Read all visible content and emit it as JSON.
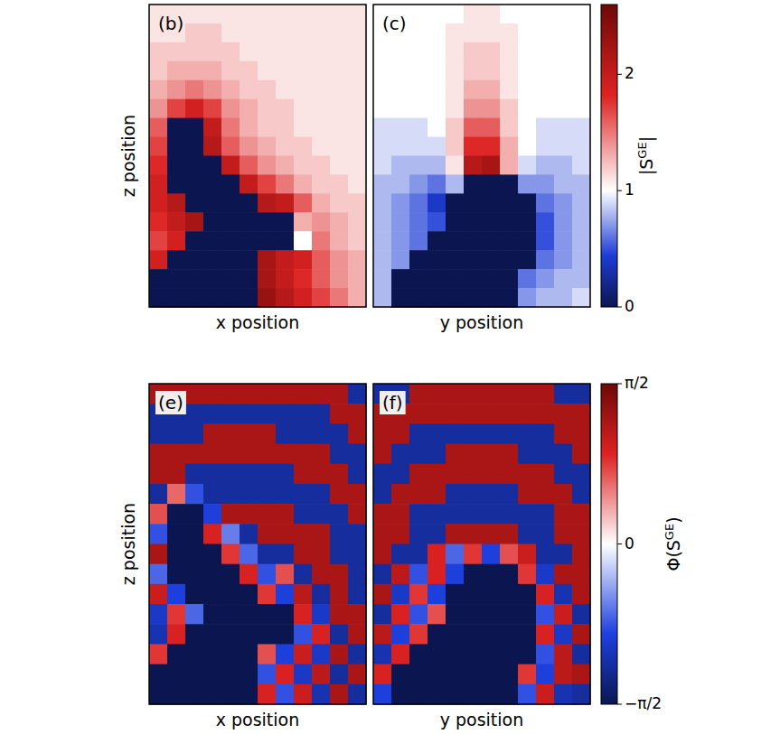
{
  "chart_data": [
    {
      "type": "heatmap",
      "title": "(b)",
      "x_label": "x position",
      "y_label": "z position",
      "tick_labels": false,
      "values": [
        [
          1.1,
          1.1,
          1.1,
          1.1,
          1.1,
          1.1,
          1.1,
          1.1,
          1.1,
          1.1,
          1.1,
          1.1
        ],
        [
          1.1,
          1.1,
          1.2,
          1.2,
          1.1,
          1.1,
          1.1,
          1.1,
          1.1,
          1.1,
          1.1,
          1.1
        ],
        [
          1.2,
          1.2,
          1.2,
          1.2,
          1.2,
          1.1,
          1.1,
          1.1,
          1.1,
          1.1,
          1.1,
          1.1
        ],
        [
          1.2,
          1.3,
          1.3,
          1.3,
          1.2,
          1.2,
          1.1,
          1.1,
          1.1,
          1.1,
          1.1,
          1.1
        ],
        [
          1.3,
          1.4,
          1.5,
          1.4,
          1.3,
          1.2,
          1.2,
          1.1,
          1.1,
          1.1,
          1.1,
          1.1
        ],
        [
          1.4,
          1.7,
          1.9,
          1.7,
          1.4,
          1.3,
          1.2,
          1.2,
          1.1,
          1.1,
          1.1,
          1.1
        ],
        [
          1.6,
          0,
          0,
          2.0,
          1.5,
          1.3,
          1.2,
          1.2,
          1.1,
          1.1,
          1.1,
          1.1
        ],
        [
          1.7,
          0,
          0,
          2.1,
          1.6,
          1.4,
          1.3,
          1.2,
          1.2,
          1.1,
          1.1,
          1.1
        ],
        [
          1.8,
          0,
          0,
          0,
          2.0,
          1.6,
          1.4,
          1.3,
          1.2,
          1.2,
          1.1,
          1.1
        ],
        [
          1.9,
          0,
          0,
          0,
          0,
          2.0,
          1.7,
          1.5,
          1.3,
          1.2,
          1.2,
          1.1
        ],
        [
          1.9,
          2.1,
          0,
          0,
          0,
          0,
          2.1,
          2.0,
          1.6,
          1.3,
          1.2,
          1.2
        ],
        [
          1.8,
          2.0,
          2.2,
          0,
          0,
          0,
          0,
          0,
          1.3,
          1.4,
          1.3,
          1.2
        ],
        [
          1.7,
          1.9,
          0,
          0,
          0,
          0,
          0,
          0,
          1.0,
          1.5,
          1.3,
          1.2
        ],
        [
          1.9,
          0,
          0,
          0,
          0,
          0,
          2.2,
          2.0,
          1.9,
          1.6,
          1.4,
          1.3
        ],
        [
          0,
          0,
          0,
          0,
          0,
          0,
          2.2,
          2.0,
          1.8,
          1.6,
          1.4,
          1.3
        ],
        [
          0,
          0,
          0,
          0,
          0,
          0,
          2.3,
          2.1,
          1.9,
          1.7,
          1.5,
          1.3
        ]
      ]
    },
    {
      "type": "heatmap",
      "title": "(c)",
      "x_label": "y position",
      "tick_labels": false,
      "values": [
        [
          1.0,
          1.0,
          1.0,
          1.0,
          1.0,
          1.1,
          1.1,
          1.0,
          1.0,
          1.0,
          1.0,
          1.0
        ],
        [
          1.0,
          1.0,
          1.0,
          1.0,
          1.1,
          1.1,
          1.1,
          1.1,
          1.0,
          1.0,
          1.0,
          1.0
        ],
        [
          1.0,
          1.0,
          1.0,
          1.0,
          1.1,
          1.2,
          1.2,
          1.1,
          1.0,
          1.0,
          1.0,
          1.0
        ],
        [
          1.0,
          1.0,
          1.0,
          1.0,
          1.1,
          1.2,
          1.2,
          1.1,
          1.0,
          1.0,
          1.0,
          1.0
        ],
        [
          1.0,
          1.0,
          1.0,
          1.0,
          1.1,
          1.3,
          1.3,
          1.1,
          1.0,
          1.0,
          1.0,
          1.0
        ],
        [
          1.0,
          1.0,
          1.0,
          1.0,
          1.1,
          1.4,
          1.4,
          1.2,
          1.0,
          1.0,
          1.0,
          1.0
        ],
        [
          0.9,
          0.9,
          0.9,
          1.0,
          1.2,
          1.6,
          1.6,
          1.2,
          1.0,
          0.9,
          0.9,
          0.9
        ],
        [
          0.9,
          0.9,
          0.9,
          0.9,
          1.2,
          1.8,
          1.8,
          1.3,
          1.0,
          0.9,
          0.9,
          0.9
        ],
        [
          0.9,
          0.8,
          0.8,
          0.8,
          1.1,
          2.1,
          2.2,
          1.3,
          0.9,
          0.8,
          0.8,
          0.9
        ],
        [
          0.8,
          0.8,
          0.7,
          0.6,
          0.8,
          0,
          0,
          0,
          0.7,
          0.7,
          0.8,
          0.8
        ],
        [
          0.8,
          0.7,
          0.6,
          0.4,
          0,
          0,
          0,
          0,
          0,
          0.6,
          0.7,
          0.8
        ],
        [
          0.8,
          0.7,
          0.6,
          0.5,
          0,
          0,
          0,
          0,
          0,
          0.5,
          0.7,
          0.8
        ],
        [
          0.8,
          0.7,
          0.6,
          0,
          0,
          0,
          0,
          0,
          0,
          0.5,
          0.7,
          0.8
        ],
        [
          0.8,
          0.7,
          0,
          0,
          0,
          0,
          0,
          0,
          0,
          0.6,
          0.7,
          0.8
        ],
        [
          0.8,
          0,
          0,
          0,
          0,
          0,
          0,
          0,
          0.6,
          0.7,
          0.8,
          0.8
        ],
        [
          0.8,
          0,
          0,
          0,
          0,
          0,
          0,
          0,
          0.7,
          0.8,
          0.8,
          0.9
        ]
      ],
      "colorbar": {
        "label": [
          "|S",
          "GE",
          "|"
        ],
        "range": [
          0,
          2.6
        ],
        "ticks": [
          0,
          1,
          2
        ]
      }
    },
    {
      "type": "heatmap",
      "title": "(e)",
      "x_label": "x position",
      "y_label": "z position",
      "tick_labels": false,
      "values": [
        [
          1.2,
          1.2,
          1.2,
          1.2,
          1.2,
          1.2,
          1.2,
          1.2,
          1.2,
          1.2,
          1.2,
          -1.2
        ],
        [
          -1.2,
          -1.2,
          -1.2,
          -1.2,
          -1.2,
          -1.2,
          -1.2,
          -1.2,
          -1.2,
          -1.2,
          1.2,
          1.2
        ],
        [
          -1.2,
          -1.2,
          -1.2,
          1.2,
          1.2,
          1.2,
          1.2,
          -1.2,
          -1.2,
          -1.2,
          -1.2,
          1.2
        ],
        [
          1.2,
          1.2,
          1.2,
          1.2,
          1.2,
          1.2,
          1.2,
          1.2,
          1.2,
          1.2,
          -1.2,
          -1.2
        ],
        [
          1.2,
          1.2,
          -1.2,
          -1.2,
          -1.2,
          -1.2,
          -1.2,
          -1.2,
          1.2,
          1.2,
          1.2,
          -1.2
        ],
        [
          -1.2,
          0.6,
          -0.8,
          -1.2,
          -1.2,
          -1.2,
          -1.2,
          -1.2,
          -1.2,
          -1.2,
          1.2,
          1.2
        ],
        [
          0.7,
          -1.57,
          -1.57,
          -0.9,
          1.2,
          1.2,
          1.2,
          1.2,
          -1.2,
          -1.2,
          -1.2,
          1.2
        ],
        [
          -0.8,
          -1.57,
          -1.57,
          0.9,
          -0.6,
          -1.2,
          1.2,
          1.2,
          1.2,
          1.2,
          -1.2,
          -1.2
        ],
        [
          1.2,
          -1.57,
          -1.57,
          -1.57,
          0.8,
          -0.7,
          -1.2,
          -1.2,
          1.2,
          1.2,
          -1.2,
          -1.2
        ],
        [
          -0.7,
          -1.57,
          -1.57,
          -1.57,
          -1.57,
          0.9,
          -0.8,
          0.7,
          -1.2,
          1.2,
          1.2,
          -1.2
        ],
        [
          1.0,
          -0.9,
          -1.57,
          -1.57,
          -1.57,
          -1.57,
          0.8,
          -0.9,
          1.1,
          -1.2,
          1.2,
          -1.2
        ],
        [
          -1.0,
          0.8,
          -0.7,
          -1.57,
          -1.57,
          -1.57,
          -1.57,
          -1.57,
          0.9,
          -1.0,
          1.2,
          1.2
        ],
        [
          -1.1,
          0.9,
          -1.57,
          -1.57,
          -1.57,
          -1.57,
          -1.57,
          -1.57,
          -0.8,
          0.9,
          -1.2,
          1.2
        ],
        [
          0.8,
          -1.57,
          -1.57,
          -1.57,
          -1.57,
          -1.57,
          0.7,
          -0.9,
          1.0,
          -1.0,
          1.2,
          -1.2
        ],
        [
          -1.57,
          -1.57,
          -1.57,
          -1.57,
          -1.57,
          -1.57,
          -0.8,
          0.9,
          -1.0,
          1.1,
          -1.2,
          1.2
        ],
        [
          -1.57,
          -1.57,
          -1.57,
          -1.57,
          -1.57,
          -1.57,
          0.9,
          -0.8,
          1.0,
          -1.1,
          1.2,
          -1.2
        ]
      ]
    },
    {
      "type": "heatmap",
      "title": "(f)",
      "x_label": "y position",
      "tick_labels": false,
      "values": [
        [
          -1.2,
          -1.2,
          1.2,
          1.2,
          1.2,
          1.2,
          1.2,
          1.2,
          1.2,
          1.2,
          -1.2,
          -1.2
        ],
        [
          1.2,
          1.2,
          1.2,
          1.2,
          1.2,
          1.2,
          1.2,
          1.2,
          1.2,
          1.2,
          1.2,
          1.2
        ],
        [
          1.2,
          1.2,
          -1.2,
          -1.2,
          -1.2,
          -1.2,
          -1.2,
          -1.2,
          -1.2,
          -1.2,
          1.2,
          1.2
        ],
        [
          1.2,
          -1.2,
          -1.2,
          -1.2,
          1.2,
          1.2,
          1.2,
          1.2,
          -1.2,
          -1.2,
          -1.2,
          1.2
        ],
        [
          -1.2,
          -1.2,
          1.2,
          1.2,
          1.2,
          1.2,
          1.2,
          1.2,
          1.2,
          1.2,
          -1.2,
          -1.2
        ],
        [
          -1.2,
          1.2,
          1.2,
          1.2,
          -1.2,
          -1.2,
          -1.2,
          -1.2,
          1.2,
          1.2,
          1.2,
          -1.2
        ],
        [
          1.2,
          1.2,
          -1.2,
          -1.2,
          -1.2,
          -1.2,
          -1.2,
          -1.2,
          -1.2,
          -1.2,
          1.2,
          1.2
        ],
        [
          1.2,
          1.2,
          -1.2,
          -1.2,
          1.2,
          1.2,
          1.2,
          1.2,
          -1.2,
          -1.2,
          1.2,
          1.2
        ],
        [
          1.2,
          -1.2,
          -1.2,
          0.9,
          -0.7,
          0.8,
          -0.9,
          0.7,
          1.0,
          -1.2,
          -1.2,
          1.2
        ],
        [
          -1.2,
          1.1,
          -0.8,
          0.9,
          -0.9,
          -1.57,
          -1.57,
          -1.57,
          0.8,
          -1.0,
          1.2,
          1.2
        ],
        [
          1.2,
          -1.0,
          0.8,
          -0.9,
          -1.57,
          -1.57,
          -1.57,
          -1.57,
          -1.57,
          0.9,
          -1.1,
          1.2
        ],
        [
          -1.2,
          0.9,
          -0.8,
          0.7,
          -1.57,
          -1.57,
          -1.57,
          -1.57,
          -1.57,
          -0.8,
          1.0,
          -1.2
        ],
        [
          1.1,
          -0.9,
          0.8,
          -1.57,
          -1.57,
          -1.57,
          -1.57,
          -1.57,
          -1.57,
          0.9,
          -1.0,
          1.2
        ],
        [
          -1.1,
          0.9,
          -1.57,
          -1.57,
          -1.57,
          -1.57,
          -1.57,
          -1.57,
          -1.57,
          -0.8,
          1.1,
          -1.2
        ],
        [
          0.9,
          -1.57,
          -1.57,
          -1.57,
          -1.57,
          -1.57,
          -1.57,
          -1.57,
          0.8,
          -0.9,
          1.1,
          1.2
        ],
        [
          -0.9,
          -1.57,
          -1.57,
          -1.57,
          -1.57,
          -1.57,
          -1.57,
          -1.57,
          -0.8,
          1.0,
          -1.1,
          -1.2
        ]
      ],
      "colorbar": {
        "label": [
          "Φ(S",
          "GE",
          ")"
        ],
        "range": [
          -1.5708,
          1.5708
        ],
        "ticks": [
          {
            "value": -1.5708,
            "label": "−π/2"
          },
          0,
          {
            "value": 1.5708,
            "label": "π/2"
          }
        ]
      }
    }
  ]
}
